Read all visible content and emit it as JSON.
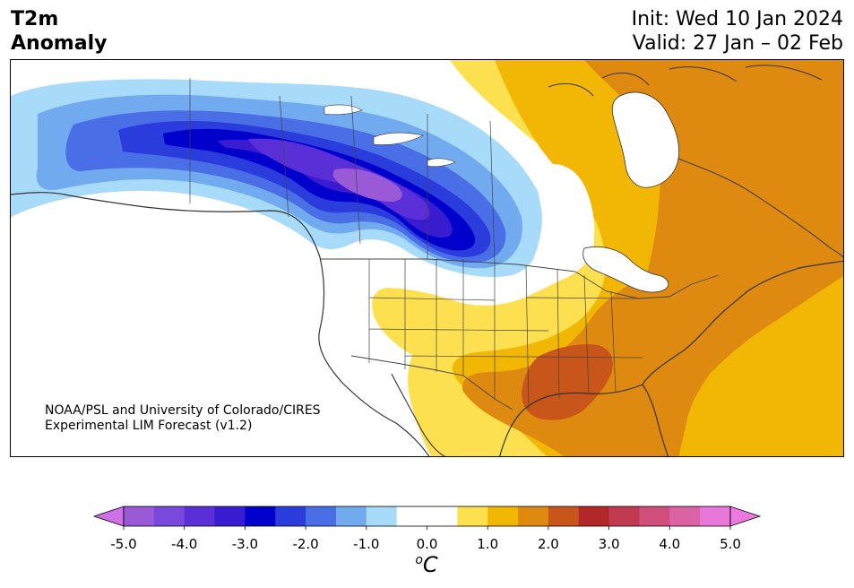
{
  "header": {
    "variable_line1": "T2m",
    "variable_line2": "Anomaly",
    "init": "Init: Wed 10 Jan 2024",
    "valid": "Valid: 27 Jan – 02 Feb"
  },
  "credit": {
    "line1": "NOAA/PSL and University of Colorado/CIRES",
    "line2": "Experimental LIM Forecast (v1.2)"
  },
  "colorbar": {
    "unit_sup": "o",
    "unit": "C",
    "tick_labels": [
      "-5.0",
      "-4.0",
      "-3.0",
      "-2.0",
      "-1.0",
      "0.0",
      "1.0",
      "2.0",
      "3.0",
      "4.0",
      "5.0"
    ],
    "bins": [
      {
        "lo": -5.0,
        "hi": -4.5,
        "color": "#9a5ad8"
      },
      {
        "lo": -4.5,
        "hi": -4.0,
        "color": "#7a48dc"
      },
      {
        "lo": -4.0,
        "hi": -3.5,
        "color": "#5a2fd8"
      },
      {
        "lo": -3.5,
        "hi": -3.0,
        "color": "#3a1cd0"
      },
      {
        "lo": -3.0,
        "hi": -2.5,
        "color": "#0000cd"
      },
      {
        "lo": -2.5,
        "hi": -2.0,
        "color": "#2a3cdc"
      },
      {
        "lo": -2.0,
        "hi": -1.5,
        "color": "#4a6ee6"
      },
      {
        "lo": -1.5,
        "hi": -1.0,
        "color": "#72aaf0"
      },
      {
        "lo": -1.0,
        "hi": -0.5,
        "color": "#a8dafa"
      },
      {
        "lo": -0.5,
        "hi": 0.5,
        "color": "#ffffff"
      },
      {
        "lo": 0.5,
        "hi": 1.0,
        "color": "#fde050"
      },
      {
        "lo": 1.0,
        "hi": 1.5,
        "color": "#f2b705"
      },
      {
        "lo": 1.5,
        "hi": 2.0,
        "color": "#de8a10"
      },
      {
        "lo": 2.0,
        "hi": 2.5,
        "color": "#c8561a"
      },
      {
        "lo": 2.5,
        "hi": 3.0,
        "color": "#b22828"
      },
      {
        "lo": 3.0,
        "hi": 3.5,
        "color": "#c23a52"
      },
      {
        "lo": 3.5,
        "hi": 4.0,
        "color": "#d04e7c"
      },
      {
        "lo": 4.0,
        "hi": 4.5,
        "color": "#dc62a6"
      },
      {
        "lo": 4.5,
        "hi": 5.0,
        "color": "#e878d8"
      }
    ],
    "extend_low_color": "#d070e8",
    "extend_high_color": "#ea7ae0"
  },
  "colors": {
    "map_background": "#ffffff",
    "coast": "#333333",
    "border": "#444444",
    "lake": "#ffffff"
  }
}
